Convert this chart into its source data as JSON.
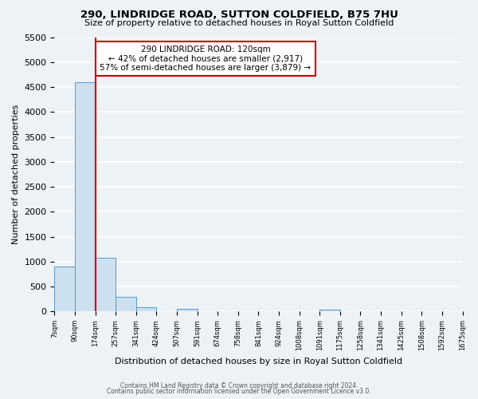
{
  "title": "290, LINDRIDGE ROAD, SUTTON COLDFIELD, B75 7HU",
  "subtitle": "Size of property relative to detached houses in Royal Sutton Coldfield",
  "xlabel": "Distribution of detached houses by size in Royal Sutton Coldfield",
  "ylabel": "Number of detached properties",
  "bin_edges": [
    "7sqm",
    "90sqm",
    "174sqm",
    "257sqm",
    "341sqm",
    "424sqm",
    "507sqm",
    "591sqm",
    "674sqm",
    "758sqm",
    "841sqm",
    "924sqm",
    "1008sqm",
    "1091sqm",
    "1175sqm",
    "1258sqm",
    "1341sqm",
    "1425sqm",
    "1508sqm",
    "1592sqm",
    "1675sqm"
  ],
  "bar_values": [
    900,
    4600,
    1070,
    290,
    80,
    0,
    50,
    0,
    0,
    0,
    0,
    0,
    0,
    40,
    0,
    0,
    0,
    0,
    0,
    0
  ],
  "bar_color": "#cce0f0",
  "bar_edge_color": "#5599cc",
  "property_line_color": "#cc0000",
  "property_line_x": 1.5,
  "annotation_title": "290 LINDRIDGE ROAD: 120sqm",
  "annotation_line1": "← 42% of detached houses are smaller (2,917)",
  "annotation_line2": "57% of semi-detached houses are larger (3,879) →",
  "annotation_box_color": "#ffffff",
  "annotation_box_edge_color": "#cc0000",
  "ylim": [
    0,
    5500
  ],
  "yticks": [
    0,
    500,
    1000,
    1500,
    2000,
    2500,
    3000,
    3500,
    4000,
    4500,
    5000,
    5500
  ],
  "footnote1": "Contains HM Land Registry data © Crown copyright and database right 2024.",
  "footnote2": "Contains public sector information licensed under the Open Government Licence v3.0.",
  "background_color": "#edf2f7",
  "grid_color": "#ffffff"
}
